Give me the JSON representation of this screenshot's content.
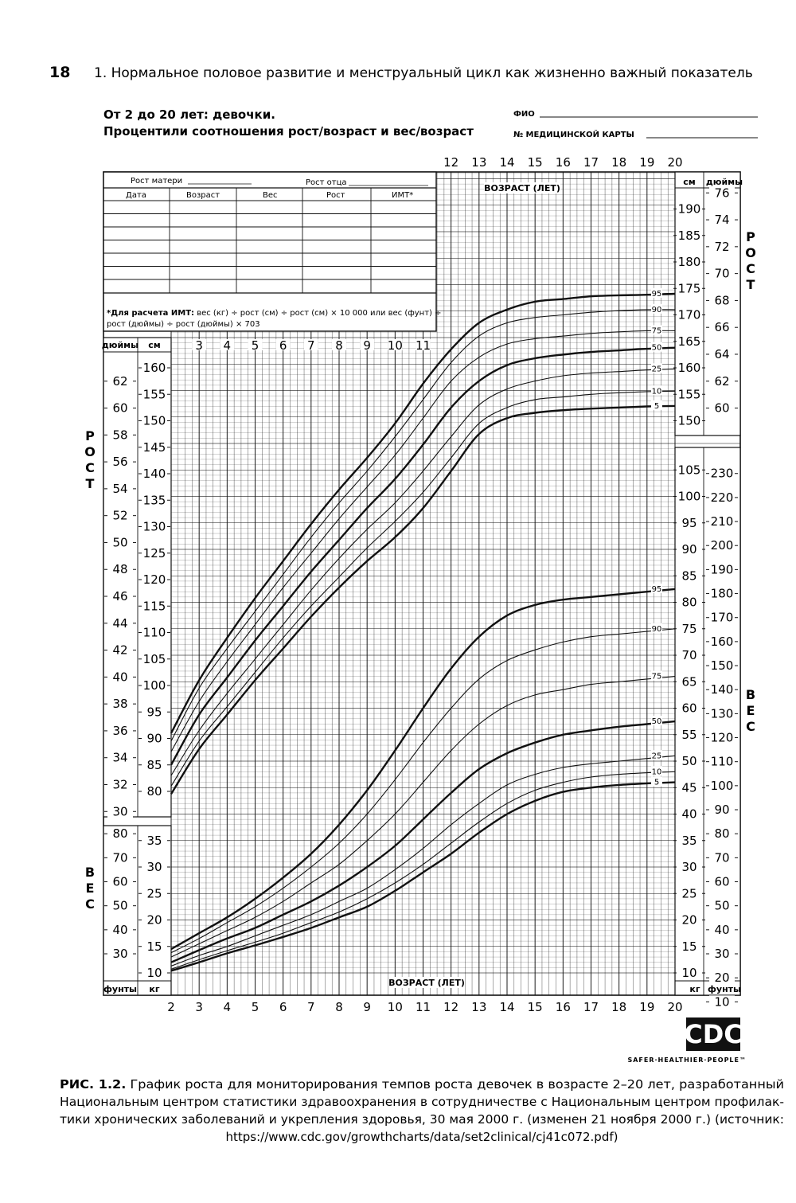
{
  "page": {
    "number": "18",
    "running_title": "1. Нормальное половое развитие и менструальный цикл как жизненно важный показатель"
  },
  "header": {
    "title_line1": "От 2 до 20 лет: девочки.",
    "title_line2": "Процентили соотношения рост/возраст и вес/возраст",
    "name_field": "ФИО",
    "record_field": "№ МЕДИЦИНСКОЙ КАРТЫ"
  },
  "record_table": {
    "mother_height": "Рост матери",
    "father_height": "Рост отца",
    "columns": [
      "Дата",
      "Возраст",
      "Вес",
      "Рост",
      "ИМТ*"
    ],
    "note_label": "*Для расчета ИМТ:",
    "note_line1": "вес (кг) ÷ рост (см) ÷ рост (см) × 10 000 или вес (фунт) ÷",
    "note_line2": "рост (дюймы) ÷ рост (дюймы) × 703"
  },
  "side_labels": {
    "height": [
      "Р",
      "О",
      "С",
      "Т"
    ],
    "weight": [
      "В",
      "Е",
      "С"
    ]
  },
  "axis_labels": {
    "age_top": "ВОЗРАСТ (ЛЕТ)",
    "age_bottom": "ВОЗРАСТ (ЛЕТ)",
    "cm": "см",
    "inches": "дюймы",
    "kg": "кг",
    "pounds": "фунты"
  },
  "chart_data": [
    {
      "type": "line",
      "title": "Рост/возраст (девочки, 2–20 лет)",
      "xlabel": "ВОЗРАСТ (ЛЕТ)",
      "ylabel": "Рост, см",
      "xlim": [
        2,
        20
      ],
      "ylim": [
        77.5,
        196
      ],
      "x_ticks": [
        2,
        3,
        4,
        5,
        6,
        7,
        8,
        9,
        10,
        11,
        12,
        13,
        14,
        15,
        16,
        17,
        18,
        19,
        20
      ],
      "y_ticks_cm_left": [
        80,
        85,
        90,
        95,
        100,
        105,
        110,
        115,
        120,
        125,
        130,
        135,
        140,
        145,
        150,
        155,
        160
      ],
      "y_ticks_cm_right": [
        150,
        155,
        160,
        165,
        170,
        175,
        180,
        185,
        190
      ],
      "y_ticks_in_left": [
        30,
        32,
        34,
        36,
        38,
        40,
        42,
        44,
        46,
        48,
        50,
        52,
        54,
        56,
        58,
        60,
        62
      ],
      "y_ticks_in_right": [
        60,
        62,
        64,
        66,
        68,
        70,
        72,
        74,
        76
      ],
      "x": [
        2,
        3,
        4,
        5,
        6,
        7,
        8,
        9,
        10,
        11,
        12,
        13,
        14,
        15,
        16,
        17,
        18,
        19,
        20
      ],
      "series": [
        {
          "name": "95",
          "values": [
            91,
            101,
            109,
            116.5,
            123.5,
            130.5,
            137,
            143,
            149.5,
            157,
            163.5,
            168.5,
            171,
            172.5,
            173,
            173.5,
            173.7,
            173.8,
            174
          ]
        },
        {
          "name": "90",
          "values": [
            89.5,
            99.5,
            107,
            114,
            121,
            128,
            134.5,
            140.5,
            147,
            154,
            161,
            166,
            168.5,
            169.5,
            170,
            170.5,
            170.8,
            171,
            171
          ]
        },
        {
          "name": "75",
          "values": [
            87.5,
            97,
            104.5,
            111.5,
            118.5,
            125,
            131.5,
            137.5,
            143.5,
            150.5,
            157.5,
            162,
            164.5,
            165.5,
            166,
            166.5,
            166.8,
            167,
            167
          ]
        },
        {
          "name": "50",
          "values": [
            85,
            94.5,
            101.5,
            108.5,
            115,
            121.5,
            127.5,
            133.5,
            139,
            145.5,
            152.5,
            157.5,
            160.5,
            161.8,
            162.5,
            163,
            163.3,
            163.6,
            163.8
          ]
        },
        {
          "name": "25",
          "values": [
            83,
            91.5,
            98.5,
            105,
            111.5,
            118,
            124,
            129.5,
            134.5,
            140.5,
            147,
            153,
            156,
            157.5,
            158.5,
            159,
            159.3,
            159.6,
            159.8
          ]
        },
        {
          "name": "10",
          "values": [
            81,
            89.5,
            96,
            102.5,
            109,
            115,
            120.5,
            126,
            131,
            136.5,
            143,
            149.5,
            152.5,
            154,
            154.5,
            155,
            155.3,
            155.5,
            155.6
          ]
        },
        {
          "name": "5",
          "values": [
            79.5,
            88,
            94.5,
            101,
            107,
            113,
            118.5,
            123.5,
            128,
            133.5,
            140.5,
            147.5,
            150.5,
            151.5,
            152,
            152.3,
            152.5,
            152.7,
            152.8
          ]
        }
      ]
    },
    {
      "type": "line",
      "title": "Вес/возраст (девочки, 2–20 лет)",
      "xlabel": "ВОЗРАСТ (ЛЕТ)",
      "ylabel": "Вес, кг",
      "xlim": [
        2,
        20
      ],
      "ylim": [
        8,
        107
      ],
      "y_ticks_kg_left": [
        10,
        15,
        20,
        25,
        30,
        35
      ],
      "y_ticks_kg_right": [
        10,
        15,
        20,
        25,
        30,
        35,
        40,
        45,
        50,
        55,
        60,
        65,
        70,
        75,
        80,
        85,
        90,
        95,
        100,
        105
      ],
      "y_ticks_lb_left": [
        30,
        40,
        50,
        60,
        70,
        80
      ],
      "y_ticks_lb_right": [
        10,
        20,
        30,
        40,
        50,
        60,
        70,
        80,
        90,
        100,
        110,
        120,
        130,
        140,
        150,
        160,
        170,
        180,
        190,
        200,
        210,
        220,
        230
      ],
      "x": [
        2,
        3,
        4,
        5,
        6,
        7,
        8,
        9,
        10,
        11,
        12,
        13,
        14,
        15,
        16,
        17,
        18,
        19,
        20
      ],
      "series": [
        {
          "name": "95",
          "values": [
            14.5,
            17.5,
            20.5,
            24,
            28,
            32.5,
            38,
            44.5,
            52,
            60,
            67.5,
            73.5,
            77.5,
            79.5,
            80.5,
            81,
            81.5,
            82,
            82.5
          ]
        },
        {
          "name": "90",
          "values": [
            13.8,
            16.5,
            19.5,
            22.5,
            26,
            30,
            34.5,
            40,
            46.5,
            53.5,
            60,
            65.5,
            69,
            71,
            72.5,
            73.5,
            74,
            74.5,
            75
          ]
        },
        {
          "name": "75",
          "values": [
            13,
            15.5,
            18,
            20.5,
            23.5,
            27,
            30.5,
            35,
            40,
            46,
            52,
            57,
            60.5,
            62.5,
            63.5,
            64.5,
            65,
            65.5,
            66
          ]
        },
        {
          "name": "50",
          "values": [
            12,
            14.3,
            16.5,
            18.5,
            21,
            23.5,
            26.5,
            30,
            34,
            39,
            44,
            48.5,
            51.5,
            53.5,
            55,
            55.8,
            56.5,
            57,
            57.5
          ]
        },
        {
          "name": "25",
          "values": [
            11.3,
            13.3,
            15,
            17,
            19,
            21,
            23.5,
            26,
            29.5,
            33.5,
            38,
            42,
            45.5,
            47.5,
            48.8,
            49.5,
            50,
            50.5,
            51
          ]
        },
        {
          "name": "10",
          "values": [
            10.7,
            12.5,
            14.2,
            15.8,
            17.5,
            19.5,
            21.5,
            24,
            27,
            30.5,
            34.5,
            38.5,
            42,
            44.5,
            46,
            47,
            47.5,
            47.8,
            48
          ]
        },
        {
          "name": "5",
          "values": [
            10.4,
            12,
            13.7,
            15.2,
            16.8,
            18.5,
            20.5,
            22.5,
            25.5,
            29,
            32.5,
            36.5,
            40,
            42.5,
            44.2,
            45,
            45.5,
            45.8,
            46
          ]
        }
      ]
    }
  ],
  "logo": {
    "text": "CDC",
    "tagline": "SAFER·HEALTHIER·PEOPLE™"
  },
  "caption": {
    "label": "РИС. 1.2.",
    "line1": "График роста для мониторирования темпов роста девочек в возрасте 2–20 лет, разработанный",
    "line2": "Национальным центром статистики здравоохранения в сотрудничестве с Национальным центром профилак-",
    "line3": "тики хронических заболеваний и укрепления здоровья, 30 мая 2000 г. (изменен 21 ноября 2000 г.) (источник:",
    "line4": "https://www.cdc.gov/growthcharts/data/set2clinical/cj41c072.pdf)"
  }
}
